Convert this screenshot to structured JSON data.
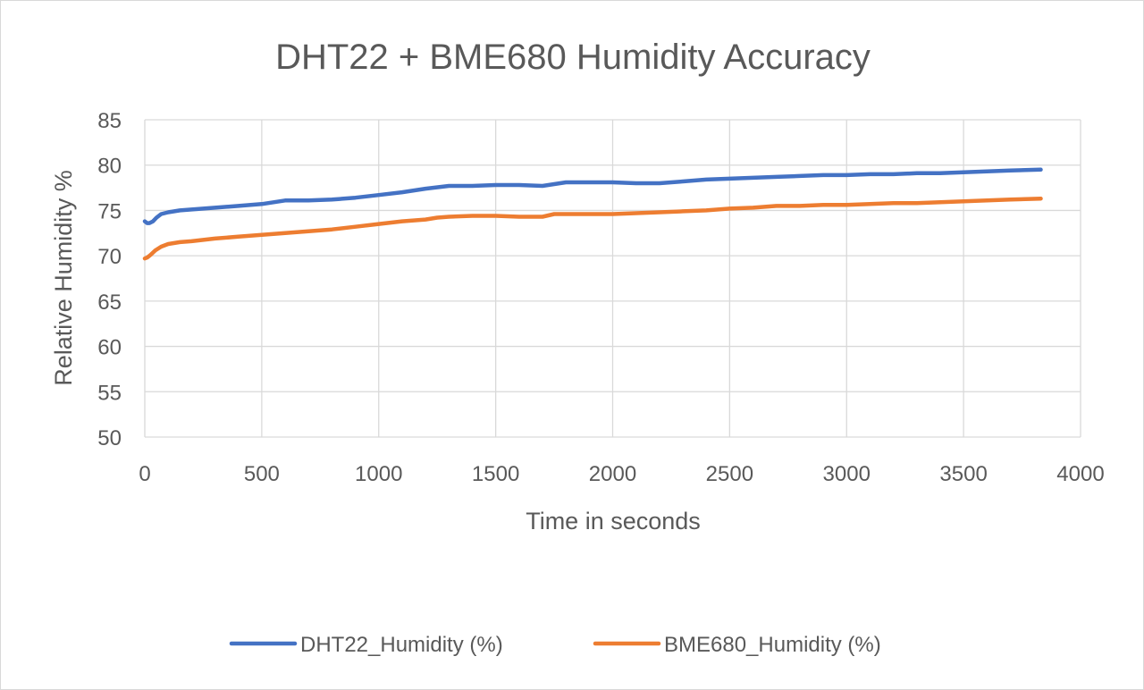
{
  "chart_data": {
    "type": "line",
    "title": "DHT22 + BME680 Humidity Accuracy",
    "xlabel": "Time in seconds",
    "ylabel": "Relative Humidity %",
    "xlim": [
      0,
      4000
    ],
    "ylim": [
      50,
      85
    ],
    "xticks": [
      0,
      500,
      1000,
      1500,
      2000,
      2500,
      3000,
      3500,
      4000
    ],
    "yticks": [
      50,
      55,
      60,
      65,
      70,
      75,
      80,
      85
    ],
    "xtick_labels": [
      "0",
      "500",
      "1000",
      "1500",
      "2000",
      "2500",
      "3000",
      "3500",
      "4000"
    ],
    "ytick_labels": [
      "50",
      "55",
      "60",
      "65",
      "70",
      "75",
      "80",
      "85"
    ],
    "grid": true,
    "legend": "bottom",
    "series": [
      {
        "name": "DHT22_Humidity (%)",
        "color": "#4472C4",
        "x": [
          0,
          10,
          20,
          35,
          50,
          70,
          100,
          150,
          200,
          300,
          400,
          500,
          550,
          600,
          700,
          800,
          900,
          1000,
          1100,
          1200,
          1300,
          1400,
          1500,
          1600,
          1700,
          1750,
          1800,
          1900,
          2000,
          2100,
          2200,
          2300,
          2400,
          2500,
          2600,
          2700,
          2800,
          2900,
          3000,
          3100,
          3200,
          3300,
          3400,
          3500,
          3600,
          3700,
          3830
        ],
        "y": [
          73.8,
          73.6,
          73.6,
          73.8,
          74.2,
          74.6,
          74.8,
          75.0,
          75.1,
          75.3,
          75.5,
          75.7,
          75.9,
          76.1,
          76.1,
          76.2,
          76.4,
          76.7,
          77.0,
          77.4,
          77.7,
          77.7,
          77.8,
          77.8,
          77.7,
          77.9,
          78.1,
          78.1,
          78.1,
          78.0,
          78.0,
          78.2,
          78.4,
          78.5,
          78.6,
          78.7,
          78.8,
          78.9,
          78.9,
          79.0,
          79.0,
          79.1,
          79.1,
          79.2,
          79.3,
          79.4,
          79.5
        ]
      },
      {
        "name": "BME680_Humidity (%)",
        "color": "#ED7D31",
        "x": [
          0,
          10,
          25,
          45,
          70,
          100,
          150,
          200,
          300,
          400,
          500,
          600,
          700,
          800,
          900,
          1000,
          1100,
          1200,
          1250,
          1300,
          1400,
          1500,
          1600,
          1700,
          1750,
          1800,
          1900,
          2000,
          2100,
          2200,
          2300,
          2400,
          2500,
          2600,
          2700,
          2800,
          2900,
          3000,
          3100,
          3200,
          3300,
          3400,
          3500,
          3600,
          3700,
          3830
        ],
        "y": [
          69.7,
          69.8,
          70.1,
          70.6,
          71.0,
          71.3,
          71.5,
          71.6,
          71.9,
          72.1,
          72.3,
          72.5,
          72.7,
          72.9,
          73.2,
          73.5,
          73.8,
          74.0,
          74.2,
          74.3,
          74.4,
          74.4,
          74.3,
          74.3,
          74.6,
          74.6,
          74.6,
          74.6,
          74.7,
          74.8,
          74.9,
          75.0,
          75.2,
          75.3,
          75.5,
          75.5,
          75.6,
          75.6,
          75.7,
          75.8,
          75.8,
          75.9,
          76.0,
          76.1,
          76.2,
          76.3
        ]
      }
    ]
  }
}
